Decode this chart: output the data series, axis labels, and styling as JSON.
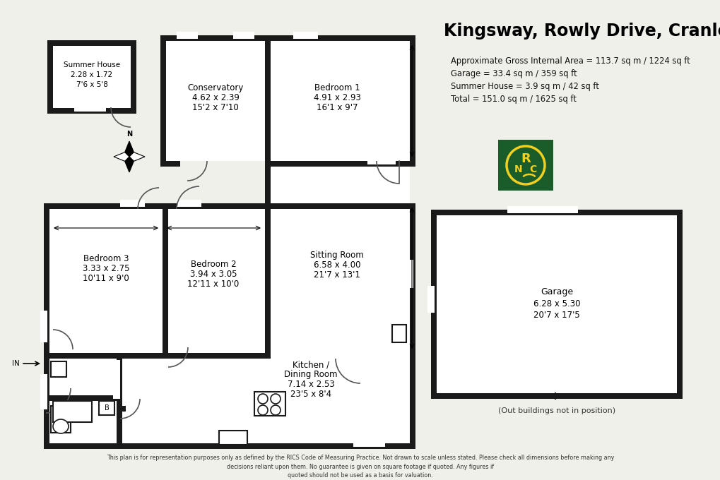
{
  "title": "Kingsway, Rowly Drive, Cranleigh",
  "stats": [
    "Approximate Gross Internal Area = 113.7 sq m / 1224 sq ft",
    "Garage = 33.4 sq m / 359 sq ft",
    "Summer House = 3.9 sq m / 42 sq ft",
    "Total = 151.0 sq m / 1625 sq ft"
  ],
  "disclaimer": "This plan is for representation purposes only as defined by the RICS Code of Measuring Practice. Not drawn to scale unless stated. Please check all dimensions before making any\ndecisions reliant upon them. No guarantee is given on square footage if quoted. Any figures if\nquoted should not be used as a basis for valuation.",
  "bg_color": "#f0f0eb",
  "wall_color": "#1a1a1a",
  "logo_bg": "#1a5c2a",
  "logo_fg": "#f0d020",
  "out_buildings_note": "(Out buildings not in position)"
}
